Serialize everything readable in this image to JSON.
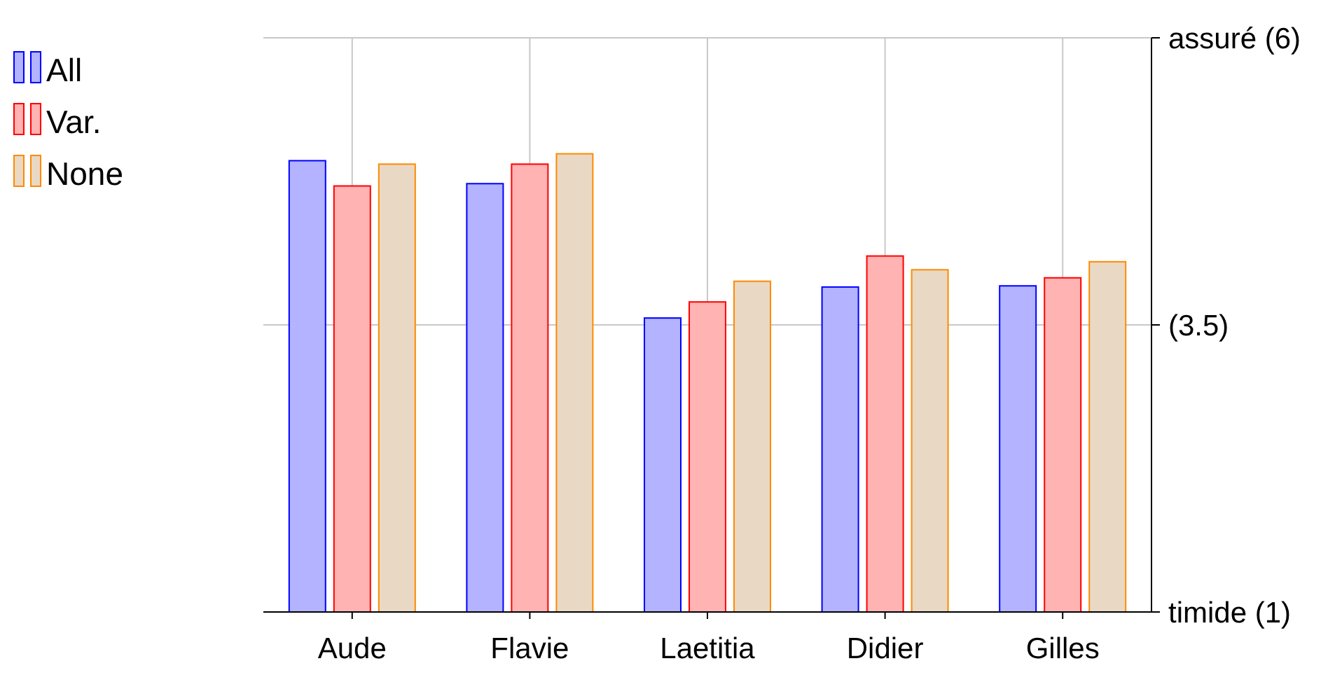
{
  "chart_data": {
    "type": "bar",
    "categories": [
      "Aude",
      "Flavie",
      "Laetitia",
      "Didier",
      "Gilles"
    ],
    "series": [
      {
        "name": "All",
        "color": "#b3b3ff",
        "values": [
          4.93,
          4.73,
          3.56,
          3.83,
          3.84
        ]
      },
      {
        "name": "Var.",
        "color": "#ffb3b3",
        "values": [
          4.71,
          4.9,
          3.7,
          4.1,
          3.91
        ]
      },
      {
        "name": "None",
        "color": "#e9d8c4",
        "values": [
          4.9,
          4.99,
          3.88,
          3.98,
          4.05
        ]
      }
    ],
    "ylim": [
      1,
      6
    ],
    "yticks": [
      {
        "value": 1,
        "label": "timide (1)"
      },
      {
        "value": 3.5,
        "label": "(3.5)"
      },
      {
        "value": 6,
        "label": "assuré (6)"
      }
    ],
    "grid": true,
    "legend": "top left"
  }
}
